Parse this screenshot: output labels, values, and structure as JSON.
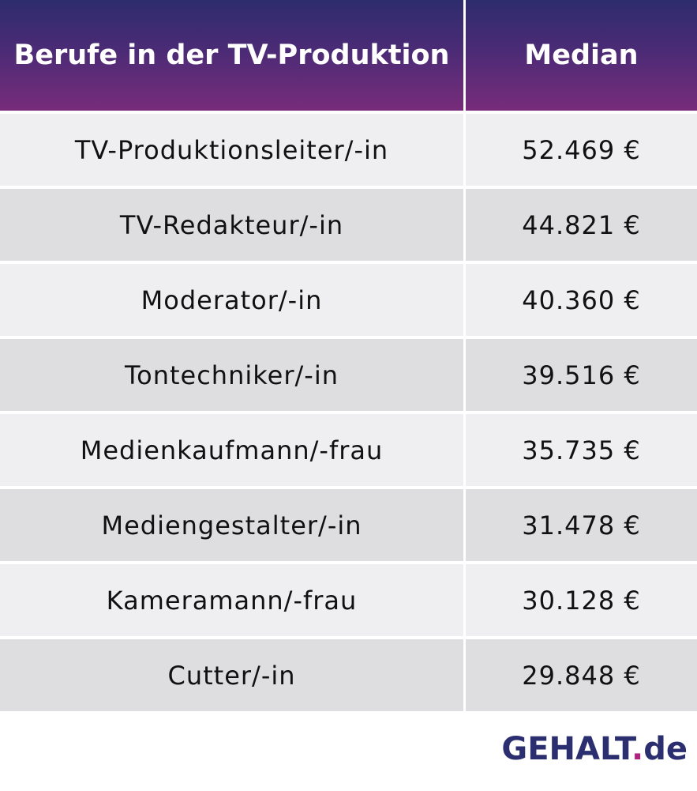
{
  "chart_data": {
    "type": "table",
    "columns": [
      "Berufe in der TV-Produktion",
      "Median"
    ],
    "rows": [
      {
        "beruf": "TV-Produktionsleiter/-in",
        "median": "52.469 €",
        "value": 52469
      },
      {
        "beruf": "TV-Redakteur/-in",
        "median": "44.821 €",
        "value": 44821
      },
      {
        "beruf": "Moderator/-in",
        "median": "40.360 €",
        "value": 40360
      },
      {
        "beruf": "Tontechniker/-in",
        "median": "39.516 €",
        "value": 39516
      },
      {
        "beruf": "Medienkaufmann/-frau",
        "median": "35.735 €",
        "value": 35735
      },
      {
        "beruf": "Mediengestalter/-in",
        "median": "31.478 €",
        "value": 31478
      },
      {
        "beruf": "Kameramann/-frau",
        "median": "30.128 €",
        "value": 30128
      },
      {
        "beruf": "Cutter/-in",
        "median": "29.848 €",
        "value": 29848
      }
    ]
  },
  "logo": {
    "text_main": "GEHALT",
    "text_dot": ".",
    "text_tld": "de"
  },
  "colors": {
    "header_gradient_top": "#2d2c6c",
    "header_gradient_bottom": "#772c7a",
    "row_light": "#efeff1",
    "row_dark": "#dedee1",
    "logo_blue": "#2b2f6f",
    "logo_dot": "#b0237f"
  }
}
